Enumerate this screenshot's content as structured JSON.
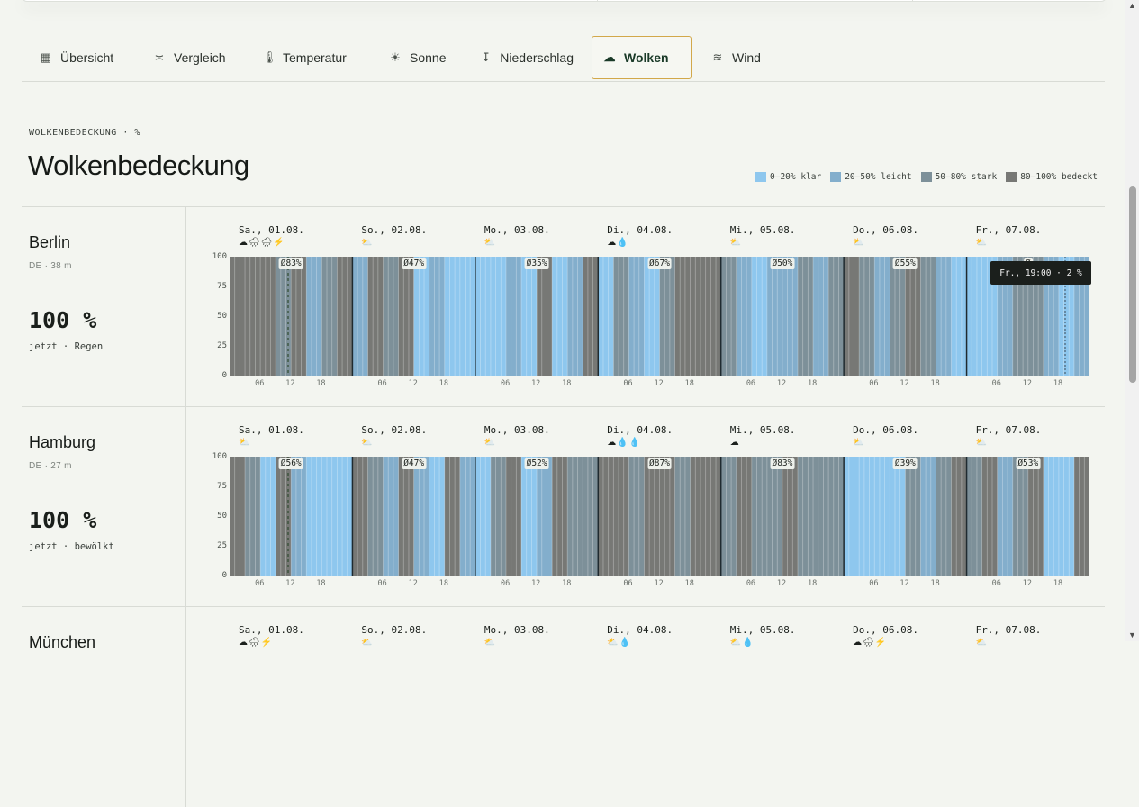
{
  "tabs": [
    {
      "label": "Übersicht",
      "icon": "table-icon",
      "glyph": "▦",
      "active": false
    },
    {
      "label": "Vergleich",
      "icon": "compare-icon",
      "glyph": "≍",
      "active": false
    },
    {
      "label": "Temperatur",
      "icon": "thermometer-icon",
      "glyph": "🌡",
      "active": false
    },
    {
      "label": "Sonne",
      "icon": "sun-icon",
      "glyph": "☀",
      "active": false
    },
    {
      "label": "Niederschlag",
      "icon": "precipitation-icon",
      "glyph": "↧",
      "active": false
    },
    {
      "label": "Wolken",
      "icon": "cloud-icon",
      "glyph": "☁",
      "active": true
    },
    {
      "label": "Wind",
      "icon": "wind-icon",
      "glyph": "≋",
      "active": false
    }
  ],
  "section": {
    "eyebrow": "WOLKENBEDECKUNG · %",
    "title": "Wolkenbedeckung"
  },
  "legend": [
    {
      "label": "0–20% klar",
      "color": "#8ec7ee"
    },
    {
      "label": "20–50% leicht",
      "color": "#83aecc"
    },
    {
      "label": "50–80% stark",
      "color": "#7d9099"
    },
    {
      "label": "80–100% bedeckt",
      "color": "#777875"
    }
  ],
  "tooltip": "Fr., 19:00 · 2 %",
  "chart_data": {
    "type": "bar",
    "ylim": [
      0,
      100
    ],
    "yticks": [
      "100",
      "75",
      "50",
      "25",
      "0"
    ],
    "xticks": [
      "06",
      "12",
      "18"
    ],
    "days": [
      "Sa., 01.08.",
      "So., 02.08.",
      "Mo., 03.08.",
      "Di., 04.08.",
      "Mi., 05.08.",
      "Do., 06.08.",
      "Fr., 07.08."
    ],
    "cities": [
      {
        "name": "Berlin",
        "meta": "DE · 38 m",
        "now_value": "100 %",
        "now_text": "jetzt · Regen",
        "weather": [
          "☁🌧🌧⚡",
          "⛅",
          "⛅",
          "☁💧",
          "⛅",
          "⛅",
          "⛅"
        ],
        "averages": [
          "Ø83%",
          "Ø47%",
          "Ø35%",
          "Ø67%",
          "Ø50%",
          "Ø55%",
          "Ø"
        ],
        "bands": [
          [
            "bedeckt",
            "bedeckt",
            "bedeckt",
            "stark",
            "bedeckt",
            "leicht",
            "stark",
            "bedeckt"
          ],
          [
            "leicht",
            "bedeckt",
            "stark",
            "bedeckt",
            "klar",
            "leicht",
            "klar",
            "klar"
          ],
          [
            "klar",
            "klar",
            "leicht",
            "klar",
            "bedeckt",
            "klar",
            "leicht",
            "bedeckt"
          ],
          [
            "klar",
            "stark",
            "leicht",
            "klar",
            "stark",
            "bedeckt",
            "bedeckt",
            "bedeckt"
          ],
          [
            "stark",
            "leicht",
            "klar",
            "leicht",
            "leicht",
            "stark",
            "leicht",
            "stark"
          ],
          [
            "bedeckt",
            "stark",
            "leicht",
            "stark",
            "bedeckt",
            "stark",
            "leicht",
            "klar"
          ],
          [
            "klar",
            "klar",
            "leicht",
            "stark",
            "stark",
            "leicht",
            "klar",
            "leicht"
          ]
        ]
      },
      {
        "name": "Hamburg",
        "meta": "DE · 27 m",
        "now_value": "100 %",
        "now_text": "jetzt · bewölkt",
        "weather": [
          "⛅",
          "⛅",
          "⛅",
          "☁💧💧",
          "☁",
          "⛅",
          "⛅"
        ],
        "averages": [
          "Ø56%",
          "Ø47%",
          "Ø52%",
          "Ø87%",
          "Ø83%",
          "Ø39%",
          "Ø53%"
        ],
        "bands": [
          [
            "bedeckt",
            "stark",
            "klar",
            "bedeckt",
            "leicht",
            "klar",
            "klar",
            "klar"
          ],
          [
            "bedeckt",
            "stark",
            "leicht",
            "bedeckt",
            "leicht",
            "klar",
            "bedeckt",
            "leicht"
          ],
          [
            "klar",
            "stark",
            "bedeckt",
            "klar",
            "leicht",
            "bedeckt",
            "stark",
            "stark"
          ],
          [
            "bedeckt",
            "bedeckt",
            "stark",
            "bedeckt",
            "bedeckt",
            "stark",
            "bedeckt",
            "bedeckt"
          ],
          [
            "stark",
            "bedeckt",
            "stark",
            "stark",
            "bedeckt",
            "stark",
            "stark",
            "stark"
          ],
          [
            "klar",
            "klar",
            "klar",
            "klar",
            "stark",
            "leicht",
            "stark",
            "bedeckt"
          ],
          [
            "stark",
            "bedeckt",
            "leicht",
            "stark",
            "bedeckt",
            "klar",
            "klar",
            "bedeckt"
          ]
        ]
      },
      {
        "name": "München",
        "weather": [
          "☁🌧⚡",
          "⛅",
          "⛅",
          "⛅💧",
          "⛅💧",
          "☁🌧⚡",
          "⛅"
        ]
      }
    ]
  }
}
